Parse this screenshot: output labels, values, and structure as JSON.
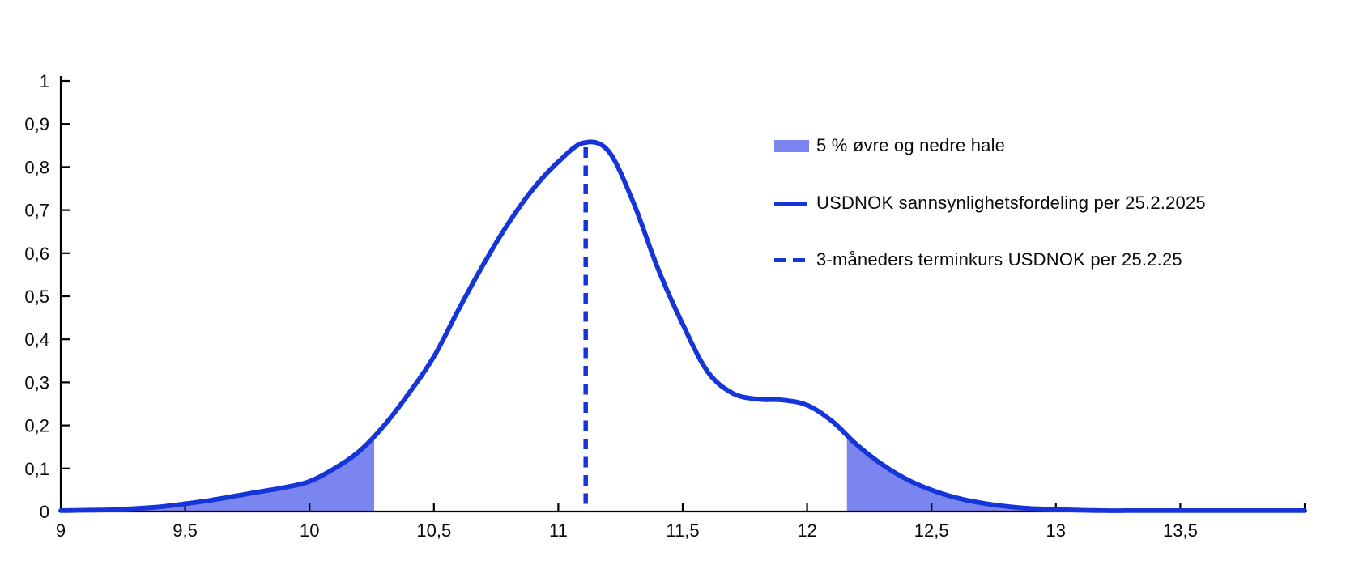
{
  "colors": {
    "curve": "#1635d8",
    "tail_fill": "#7b85ef",
    "axis": "#000000",
    "text": "#0a0a0a",
    "background": "#ffffff"
  },
  "legend": {
    "items": [
      {
        "swatch": "fill",
        "label": "5 % øvre og nedre hale"
      },
      {
        "swatch": "line",
        "label": "USDNOK sannsynlighetsfordeling per 25.2.2025"
      },
      {
        "swatch": "dashed",
        "label": "3-måneders terminkurs USDNOK per 25.2.25"
      }
    ]
  },
  "chart_data": {
    "type": "area",
    "title": "",
    "xlabel": "",
    "ylabel": "",
    "xlim": [
      9,
      14
    ],
    "ylim": [
      0,
      1
    ],
    "grid": false,
    "legend_position": "upper right",
    "x_tick_values": [
      9,
      9.5,
      10,
      10.5,
      11,
      11.5,
      12,
      12.5,
      13,
      13.5
    ],
    "x_tick_labels": [
      "9",
      "9,5",
      "10",
      "10,5",
      "11",
      "11,5",
      "12",
      "12,5",
      "13",
      "13,5"
    ],
    "x_axis_end_tick": 14,
    "y_tick_values": [
      0,
      0.1,
      0.2,
      0.3,
      0.4,
      0.5,
      0.6,
      0.7,
      0.8,
      0.9,
      1
    ],
    "y_tick_labels": [
      "0",
      "0,1",
      "0,2",
      "0,3",
      "0,4",
      "0,5",
      "0,6",
      "0,7",
      "0,8",
      "0,9",
      "1"
    ],
    "series": [
      {
        "name": "USDNOK sannsynlighetsfordeling per 25.2.2025",
        "type": "line",
        "x": [
          9.0,
          9.1,
          9.2,
          9.3,
          9.4,
          9.5,
          9.6,
          9.7,
          9.8,
          9.9,
          10.0,
          10.1,
          10.2,
          10.3,
          10.4,
          10.5,
          10.6,
          10.7,
          10.8,
          10.9,
          11.0,
          11.1,
          11.2,
          11.3,
          11.4,
          11.5,
          11.6,
          11.7,
          11.8,
          11.9,
          12.0,
          12.1,
          12.2,
          12.3,
          12.4,
          12.5,
          12.6,
          12.7,
          12.8,
          12.9,
          13.0,
          13.1,
          13.2,
          13.3,
          13.4,
          13.5,
          13.6,
          13.7,
          13.8,
          13.9,
          14.0
        ],
        "y": [
          0.002,
          0.003,
          0.004,
          0.007,
          0.011,
          0.018,
          0.026,
          0.036,
          0.046,
          0.056,
          0.07,
          0.1,
          0.14,
          0.2,
          0.275,
          0.36,
          0.47,
          0.575,
          0.67,
          0.75,
          0.812,
          0.856,
          0.838,
          0.72,
          0.565,
          0.435,
          0.325,
          0.275,
          0.261,
          0.259,
          0.247,
          0.21,
          0.155,
          0.11,
          0.075,
          0.05,
          0.032,
          0.02,
          0.012,
          0.007,
          0.005,
          0.003,
          0.002,
          0.002,
          0.002,
          0.002,
          0.002,
          0.002,
          0.002,
          0.002,
          0.002
        ]
      },
      {
        "name": "3-måneders terminkurs USDNOK per 25.2.25",
        "type": "vline",
        "x": 11.11,
        "style": "dashed"
      }
    ],
    "shaded_tails": {
      "label": "5 % øvre og nedre hale",
      "coverage": "5 %",
      "lower_cutoff": 10.26,
      "upper_cutoff": 12.16
    },
    "peak": {
      "x": 11.1,
      "y": 0.86
    }
  }
}
